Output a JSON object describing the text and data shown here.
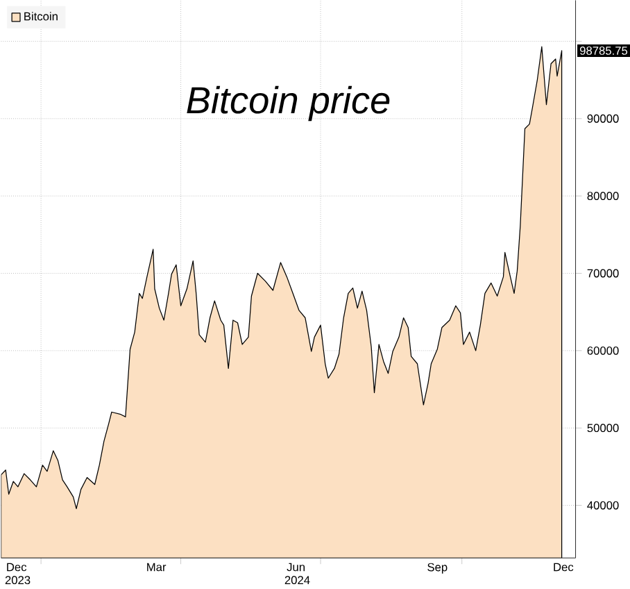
{
  "chart_data": {
    "type": "area",
    "title": "Bitcoin price",
    "x": [
      "2023-12-06",
      "2023-12-09",
      "2023-12-11",
      "2023-12-14",
      "2023-12-17",
      "2023-12-21",
      "2023-12-25",
      "2023-12-29",
      "2024-01-02",
      "2024-01-05",
      "2024-01-09",
      "2024-01-12",
      "2024-01-15",
      "2024-01-18",
      "2024-01-22",
      "2024-01-24",
      "2024-01-27",
      "2024-01-31",
      "2024-02-05",
      "2024-02-08",
      "2024-02-11",
      "2024-02-14",
      "2024-02-16",
      "2024-02-22",
      "2024-02-25",
      "2024-02-28",
      "2024-03-02",
      "2024-03-05",
      "2024-03-07",
      "2024-03-10",
      "2024-03-14",
      "2024-03-15",
      "2024-03-18",
      "2024-03-21",
      "2024-03-24",
      "2024-03-26",
      "2024-03-29",
      "2024-04-01",
      "2024-04-05",
      "2024-04-09",
      "2024-04-11",
      "2024-04-13",
      "2024-04-17",
      "2024-04-20",
      "2024-04-23",
      "2024-04-27",
      "2024-04-29",
      "2024-05-02",
      "2024-05-05",
      "2024-05-08",
      "2024-05-11",
      "2024-05-15",
      "2024-05-17",
      "2024-05-21",
      "2024-05-26",
      "2024-05-31",
      "2024-06-05",
      "2024-06-09",
      "2024-06-13",
      "2024-06-17",
      "2024-06-21",
      "2024-06-25",
      "2024-06-27",
      "2024-07-01",
      "2024-07-04",
      "2024-07-06",
      "2024-07-10",
      "2024-07-13",
      "2024-07-16",
      "2024-07-19",
      "2024-07-22",
      "2024-07-25",
      "2024-07-28",
      "2024-07-31",
      "2024-08-03",
      "2024-08-05",
      "2024-08-08",
      "2024-08-11",
      "2024-08-14",
      "2024-08-17",
      "2024-08-21",
      "2024-08-24",
      "2024-08-27",
      "2024-08-29",
      "2024-09-02",
      "2024-09-06",
      "2024-09-09",
      "2024-09-11",
      "2024-09-15",
      "2024-09-18",
      "2024-09-23",
      "2024-09-27",
      "2024-09-30",
      "2024-10-02",
      "2024-10-06",
      "2024-10-10",
      "2024-10-13",
      "2024-10-16",
      "2024-10-20",
      "2024-10-24",
      "2024-10-28",
      "2024-10-29",
      "2024-11-01",
      "2024-11-04",
      "2024-11-06",
      "2024-11-08",
      "2024-11-11",
      "2024-11-14",
      "2024-11-16",
      "2024-11-19",
      "2024-11-22",
      "2024-11-25",
      "2024-11-28",
      "2024-12-01",
      "2024-12-02",
      "2024-12-05"
    ],
    "series": [
      {
        "name": "Bitcoin",
        "color": "#fce0c2",
        "values": [
          43940,
          44560,
          41440,
          43100,
          42400,
          44100,
          43300,
          42400,
          45200,
          44400,
          47060,
          45800,
          43300,
          42400,
          41100,
          39560,
          42060,
          43600,
          42700,
          45200,
          48300,
          50500,
          52060,
          51750,
          51440,
          60190,
          62400,
          67400,
          66750,
          69560,
          73100,
          68000,
          65500,
          63940,
          67400,
          69900,
          71100,
          65800,
          68000,
          71600,
          67400,
          62060,
          61100,
          64250,
          66440,
          63940,
          63300,
          57700,
          63940,
          63600,
          60800,
          61750,
          67060,
          70000,
          69000,
          67800,
          71400,
          69560,
          67400,
          65200,
          64250,
          59900,
          61750,
          63300,
          58300,
          56440,
          57700,
          59560,
          64250,
          67400,
          68100,
          65500,
          67700,
          65200,
          60500,
          54560,
          60800,
          58600,
          57060,
          59900,
          61750,
          64250,
          63000,
          59250,
          58300,
          53000,
          55800,
          58300,
          60190,
          63000,
          63940,
          65800,
          64900,
          60800,
          62400,
          60000,
          63300,
          67400,
          68750,
          67060,
          69560,
          72700,
          70000,
          67400,
          70300,
          76130,
          88700,
          89300,
          91500,
          94900,
          99300,
          91800,
          97100,
          97700,
          95500,
          98785.75
        ]
      }
    ],
    "xlim": [
      "2023-12-06",
      "2024-12-14"
    ],
    "xticks": [
      {
        "value": "2023-12-16",
        "label": "Dec 2023"
      },
      {
        "value": "2024-01-01",
        "label": null
      },
      {
        "value": "2024-03-16",
        "label": "Mar"
      },
      {
        "value": "2024-04-01",
        "label": null
      },
      {
        "value": "2024-06-15",
        "label": "Jun 2024"
      },
      {
        "value": "2024-07-01",
        "label": null
      },
      {
        "value": "2024-09-15",
        "label": "Sep"
      },
      {
        "value": "2024-10-01",
        "label": null
      },
      {
        "value": "2024-12-06",
        "label": "Dec"
      }
    ],
    "ylim": [
      33200,
      105300
    ],
    "yticks": [
      40000,
      50000,
      60000,
      70000,
      80000,
      90000,
      {
        "value": 100000,
        "label": null
      }
    ],
    "annotations": [
      {
        "text": "98785.75",
        "x": "2024-12-05",
        "y": 98785.75
      }
    ],
    "grid": true,
    "legend": "top left"
  }
}
